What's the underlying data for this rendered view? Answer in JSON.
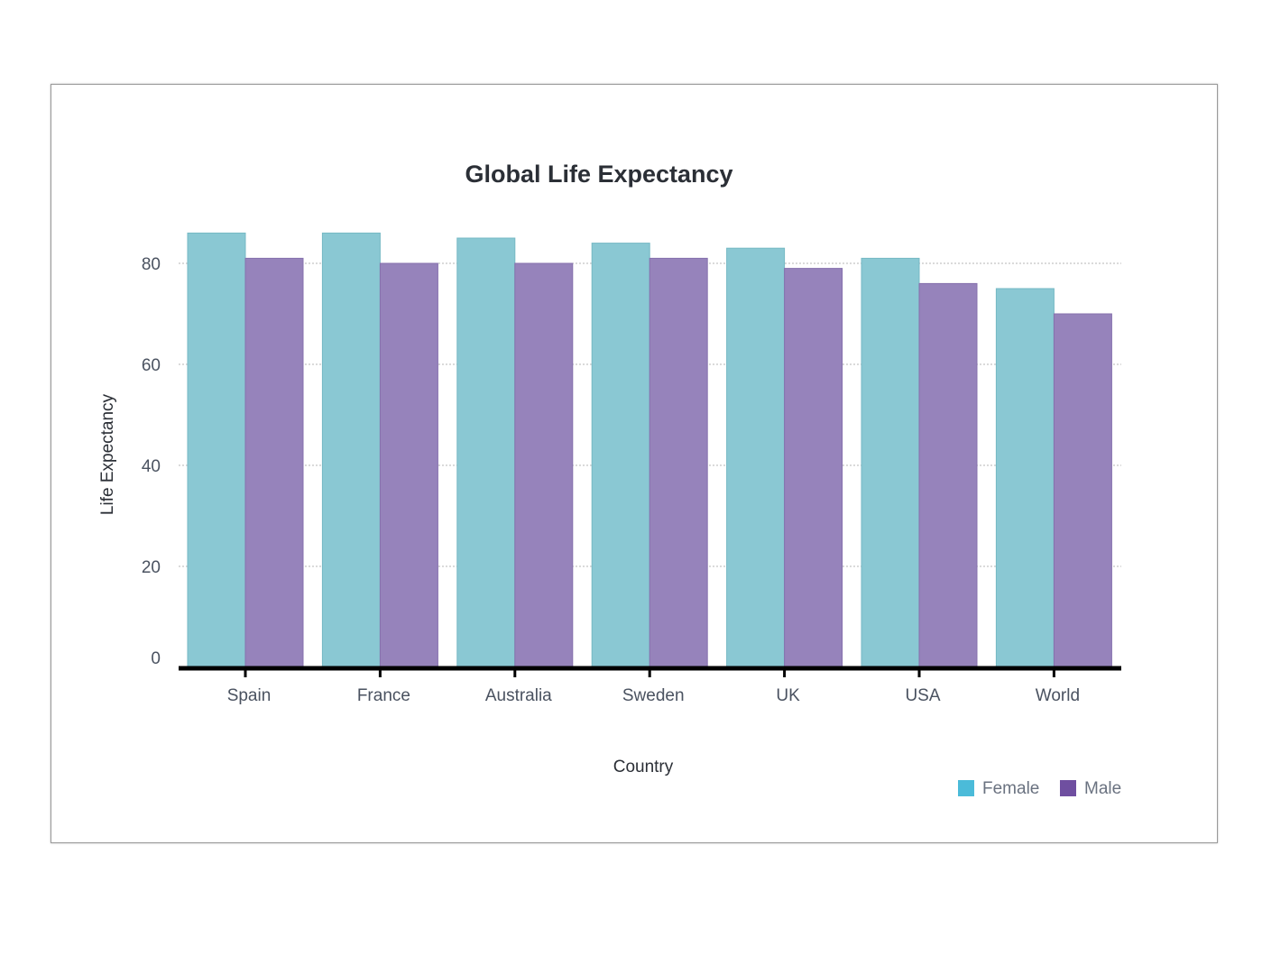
{
  "chart_data": {
    "type": "bar",
    "title": "Global Life Expectancy",
    "xlabel": "Country",
    "ylabel": "Life Expectancy",
    "categories": [
      "Spain",
      "France",
      "Australia",
      "Sweden",
      "UK",
      "USA",
      "World"
    ],
    "series": [
      {
        "name": "Female",
        "values": [
          86,
          86,
          85,
          84,
          83,
          81,
          75
        ],
        "color": "#8ac8d3",
        "legend_color": "#4bbbd9"
      },
      {
        "name": "Male",
        "values": [
          81,
          80,
          80,
          81,
          79,
          76,
          70
        ],
        "color": "#9683bb",
        "legend_color": "#6f4fa0"
      }
    ],
    "yticks": [
      0,
      20,
      40,
      60,
      80
    ],
    "ylim": [
      0,
      86
    ],
    "grid": true,
    "legend_position": "bottom-right"
  }
}
